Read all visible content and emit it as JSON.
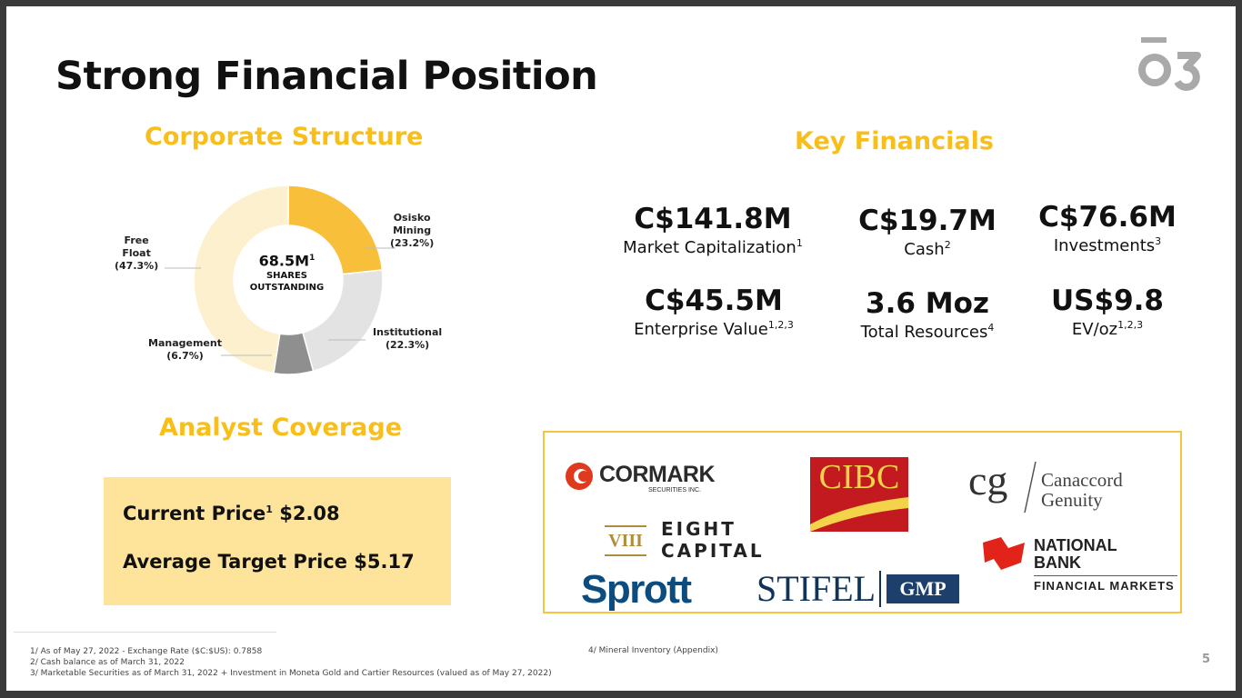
{
  "title": "Strong Financial Position",
  "logo_text": "O3",
  "corporate_structure": {
    "heading": "Corporate Structure",
    "center_value": "68.5M",
    "center_sup": "1",
    "center_line1": "SHARES",
    "center_line2": "OUTSTANDING",
    "segments": [
      {
        "name": "Osisko Mining",
        "label_line1": "Osisko",
        "label_line2": "Mining",
        "pct_text": "(23.2%)",
        "value": 23.2,
        "color": "#f8bf3a"
      },
      {
        "name": "Institutional",
        "label_line1": "Institutional",
        "pct_text": "(22.3%)",
        "value": 22.3,
        "color": "#e3e3e3"
      },
      {
        "name": "Management",
        "label_line1": "Management",
        "pct_text": "(6.7%)",
        "value": 6.7,
        "color": "#8f8f8f"
      },
      {
        "name": "Free Float",
        "label_line1": "Free",
        "label_line2": "Float",
        "pct_text": "(47.3%)",
        "value": 47.3,
        "color": "#fdf0cf"
      }
    ]
  },
  "key_financials": {
    "heading": "Key Financials",
    "items": [
      {
        "value": "C$141.8M",
        "label": "Market Capitalization",
        "sup": "1"
      },
      {
        "value": "C$19.7M",
        "label": "Cash",
        "sup": "2"
      },
      {
        "value": "C$76.6M",
        "label": "Investments",
        "sup": "3"
      },
      {
        "value": "C$45.5M",
        "label": "Enterprise Value",
        "sup": "1,2,3"
      },
      {
        "value": "3.6 Moz",
        "label": "Total Resources",
        "sup": "4"
      },
      {
        "value": "US$9.8",
        "label": "EV/oz",
        "sup": "1,2,3"
      }
    ]
  },
  "analyst_coverage": {
    "heading": "Analyst Coverage",
    "current_price_label": "Current Price",
    "current_price_sup": "1",
    "current_price_value": "$2.08",
    "avg_target_label": "Average Target Price",
    "avg_target_value": "$5.17"
  },
  "brokers": {
    "cormark": "CORMARK",
    "cormark_sub": "SECURITIES INC.",
    "cibc": "CIBC",
    "canaccord_mark": "cg",
    "canaccord_1": "Canaccord",
    "canaccord_2": "Genuity",
    "eight_mark": "VIII",
    "eight_1": "EIGHT",
    "eight_2": "CAPITAL",
    "national_1": "NATIONAL",
    "national_2": "BANK",
    "national_3": "FINANCIAL MARKETS",
    "sprott": "Sprott",
    "stifel": "STIFEL",
    "gmp": "GMP"
  },
  "footnotes": {
    "n1": "1/ As of May 27, 2022 - Exchange Rate ($C:$US): 0.7858",
    "n2": "2/ Cash balance as of March 31, 2022",
    "n3": "3/ Marketable Securities as of March 31, 2022 + Investment in Moneta Gold and Cartier Resources (valued as of May 27, 2022)",
    "n4": "4/ Mineral Inventory (Appendix)"
  },
  "page_number": "5"
}
